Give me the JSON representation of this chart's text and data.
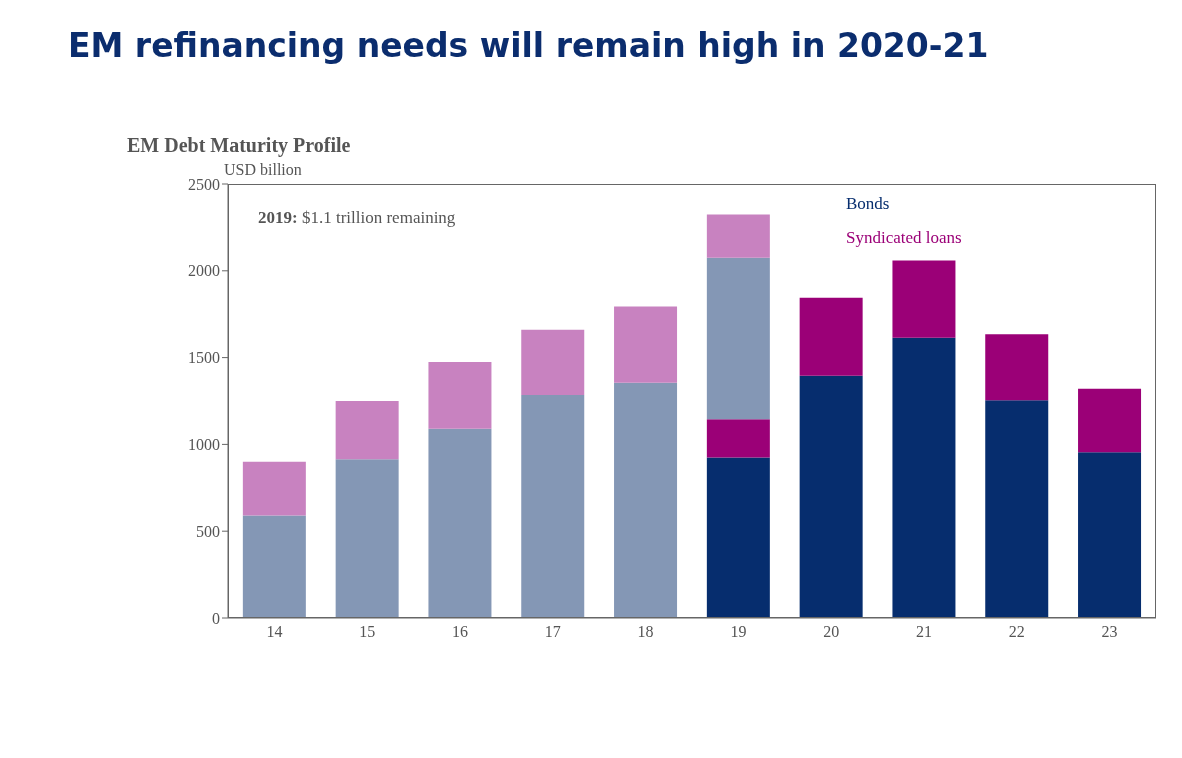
{
  "chart_data": {
    "type": "bar",
    "title": "EM refinancing needs will remain high in 2020-21",
    "subtitle": "EM Debt Maturity Profile",
    "ylabel": "USD billion",
    "annotations": [
      "2019: $1.1 trillion remaining"
    ],
    "categories": [
      "14",
      "15",
      "16",
      "17",
      "18",
      "19",
      "20",
      "21",
      "22",
      "23"
    ],
    "stacked": true,
    "series": [
      {
        "name": "Bonds",
        "color": "#062d6e",
        "values": [
          null,
          null,
          null,
          null,
          null,
          925,
          1395,
          1615,
          1255,
          955
        ]
      },
      {
        "name": "Syndicated loans",
        "color": "#9b0077",
        "values": [
          null,
          null,
          null,
          null,
          null,
          220,
          450,
          445,
          380,
          365
        ]
      },
      {
        "color": "#8497b5",
        "values": [
          590,
          915,
          1090,
          1285,
          1355,
          930,
          null,
          null,
          null,
          null
        ]
      },
      {
        "color": "#c882c0",
        "values": [
          310,
          335,
          385,
          375,
          440,
          250,
          null,
          null,
          null,
          null
        ]
      }
    ],
    "ylim": [
      0,
      2500
    ],
    "yticks": [
      0,
      500,
      1000,
      1500,
      2000,
      2500
    ],
    "legend": "top right"
  }
}
